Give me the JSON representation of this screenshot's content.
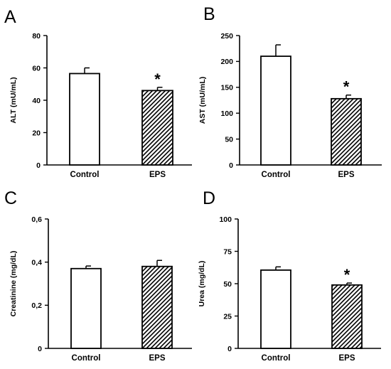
{
  "chart_data": [
    {
      "type": "bar",
      "panel": "A",
      "categories": [
        "Control",
        "EPS"
      ],
      "values": [
        56.5,
        46
      ],
      "errors": [
        3.5,
        2
      ],
      "annotations": [
        "",
        "*"
      ],
      "ylabel": "ALT (mU/mL)",
      "ylim": [
        0,
        80
      ],
      "yticks": [
        "0",
        "20",
        "40",
        "60",
        "80"
      ],
      "fills": [
        "white",
        "hatched"
      ]
    },
    {
      "type": "bar",
      "panel": "B",
      "categories": [
        "Control",
        "EPS"
      ],
      "values": [
        210,
        128
      ],
      "errors": [
        22,
        7
      ],
      "annotations": [
        "",
        "*"
      ],
      "ylabel": "AST (mU/mL)",
      "ylim": [
        0,
        250
      ],
      "yticks": [
        "0",
        "50",
        "100",
        "150",
        "200",
        "250"
      ],
      "fills": [
        "white",
        "hatched"
      ]
    },
    {
      "type": "bar",
      "panel": "C",
      "categories": [
        "Control",
        "EPS"
      ],
      "values": [
        0.37,
        0.38
      ],
      "errors": [
        0.012,
        0.028
      ],
      "annotations": [
        "",
        ""
      ],
      "ylabel": "Creatinine (mg/dL)",
      "ylim": [
        0,
        0.6
      ],
      "yticks": [
        "0",
        "0,2",
        "0,4",
        "0,6"
      ],
      "fills": [
        "white",
        "hatched"
      ]
    },
    {
      "type": "bar",
      "panel": "D",
      "categories": [
        "Control",
        "EPS"
      ],
      "values": [
        60.5,
        49
      ],
      "errors": [
        2.5,
        1.5
      ],
      "annotations": [
        "",
        "*"
      ],
      "ylabel": "Urea (mg/dL)",
      "ylim": [
        0,
        100
      ],
      "yticks": [
        "0",
        "25",
        "50",
        "75",
        "100"
      ],
      "fills": [
        "white",
        "hatched"
      ]
    }
  ],
  "colors": {
    "ink": "#000000",
    "bar_fill": "#ffffff"
  }
}
